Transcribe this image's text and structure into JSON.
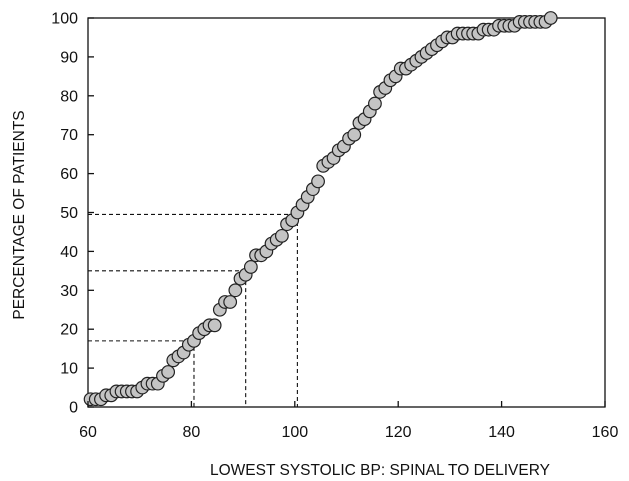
{
  "chart_data": {
    "type": "scatter",
    "title": "",
    "xlabel": "LOWEST SYSTOLIC BP:  SPINAL TO DELIVERY",
    "ylabel": "PERCENTAGE OF PATIENTS",
    "xlim": [
      60,
      160
    ],
    "ylim": [
      0,
      100
    ],
    "x_ticks": [
      "60",
      "80",
      "100",
      "120",
      "140",
      "160"
    ],
    "y_ticks": [
      "0",
      "10",
      "20",
      "30",
      "40",
      "50",
      "60",
      "70",
      "80",
      "90",
      "100"
    ],
    "grid": false,
    "legend": "none",
    "reference_lines": [
      {
        "x": 80.5,
        "y": 17
      },
      {
        "x": 90.5,
        "y": 35
      },
      {
        "x": 100.5,
        "y": 49.5
      }
    ],
    "points": [
      [
        60.5,
        2
      ],
      [
        61.5,
        2
      ],
      [
        62.5,
        2
      ],
      [
        63.5,
        3
      ],
      [
        64.5,
        3
      ],
      [
        65.5,
        4
      ],
      [
        66.5,
        4
      ],
      [
        67.5,
        4
      ],
      [
        68.5,
        4
      ],
      [
        69.5,
        4
      ],
      [
        70.5,
        5
      ],
      [
        71.5,
        6
      ],
      [
        72.5,
        6
      ],
      [
        73.5,
        6
      ],
      [
        74.5,
        8
      ],
      [
        75.5,
        9
      ],
      [
        76.5,
        12
      ],
      [
        77.5,
        13
      ],
      [
        78.5,
        14
      ],
      [
        79.5,
        16
      ],
      [
        80.5,
        17
      ],
      [
        81.5,
        19
      ],
      [
        82.5,
        20
      ],
      [
        83.5,
        21
      ],
      [
        84.5,
        21
      ],
      [
        85.5,
        25
      ],
      [
        86.5,
        27
      ],
      [
        87.5,
        27
      ],
      [
        88.5,
        30
      ],
      [
        89.5,
        33
      ],
      [
        90.5,
        34
      ],
      [
        91.5,
        36
      ],
      [
        92.5,
        39
      ],
      [
        93.5,
        39
      ],
      [
        94.5,
        40
      ],
      [
        95.5,
        42
      ],
      [
        96.5,
        43
      ],
      [
        97.5,
        44
      ],
      [
        98.5,
        47
      ],
      [
        99.5,
        48
      ],
      [
        100.5,
        50
      ],
      [
        101.5,
        52
      ],
      [
        102.5,
        54
      ],
      [
        103.5,
        56
      ],
      [
        104.5,
        58
      ],
      [
        105.5,
        62
      ],
      [
        106.5,
        63
      ],
      [
        107.5,
        64
      ],
      [
        108.5,
        66
      ],
      [
        109.5,
        67
      ],
      [
        110.5,
        69
      ],
      [
        111.5,
        70
      ],
      [
        112.5,
        73
      ],
      [
        113.5,
        74
      ],
      [
        114.5,
        76
      ],
      [
        115.5,
        78
      ],
      [
        116.5,
        81
      ],
      [
        117.5,
        82
      ],
      [
        118.5,
        84
      ],
      [
        119.5,
        85
      ],
      [
        120.5,
        87
      ],
      [
        121.5,
        87
      ],
      [
        122.5,
        88
      ],
      [
        123.5,
        89
      ],
      [
        124.5,
        90
      ],
      [
        125.5,
        91
      ],
      [
        126.5,
        92
      ],
      [
        127.5,
        93
      ],
      [
        128.5,
        94
      ],
      [
        129.5,
        95
      ],
      [
        130.5,
        95
      ],
      [
        131.5,
        96
      ],
      [
        132.5,
        96
      ],
      [
        133.5,
        96
      ],
      [
        134.5,
        96
      ],
      [
        135.5,
        96
      ],
      [
        136.5,
        97
      ],
      [
        137.5,
        97
      ],
      [
        138.5,
        97
      ],
      [
        139.5,
        98
      ],
      [
        140.5,
        98
      ],
      [
        141.5,
        98
      ],
      [
        142.5,
        98
      ],
      [
        143.5,
        99
      ],
      [
        144.5,
        99
      ],
      [
        145.5,
        99
      ],
      [
        146.5,
        99
      ],
      [
        147.5,
        99
      ],
      [
        148.5,
        99
      ],
      [
        149.5,
        100
      ]
    ]
  }
}
